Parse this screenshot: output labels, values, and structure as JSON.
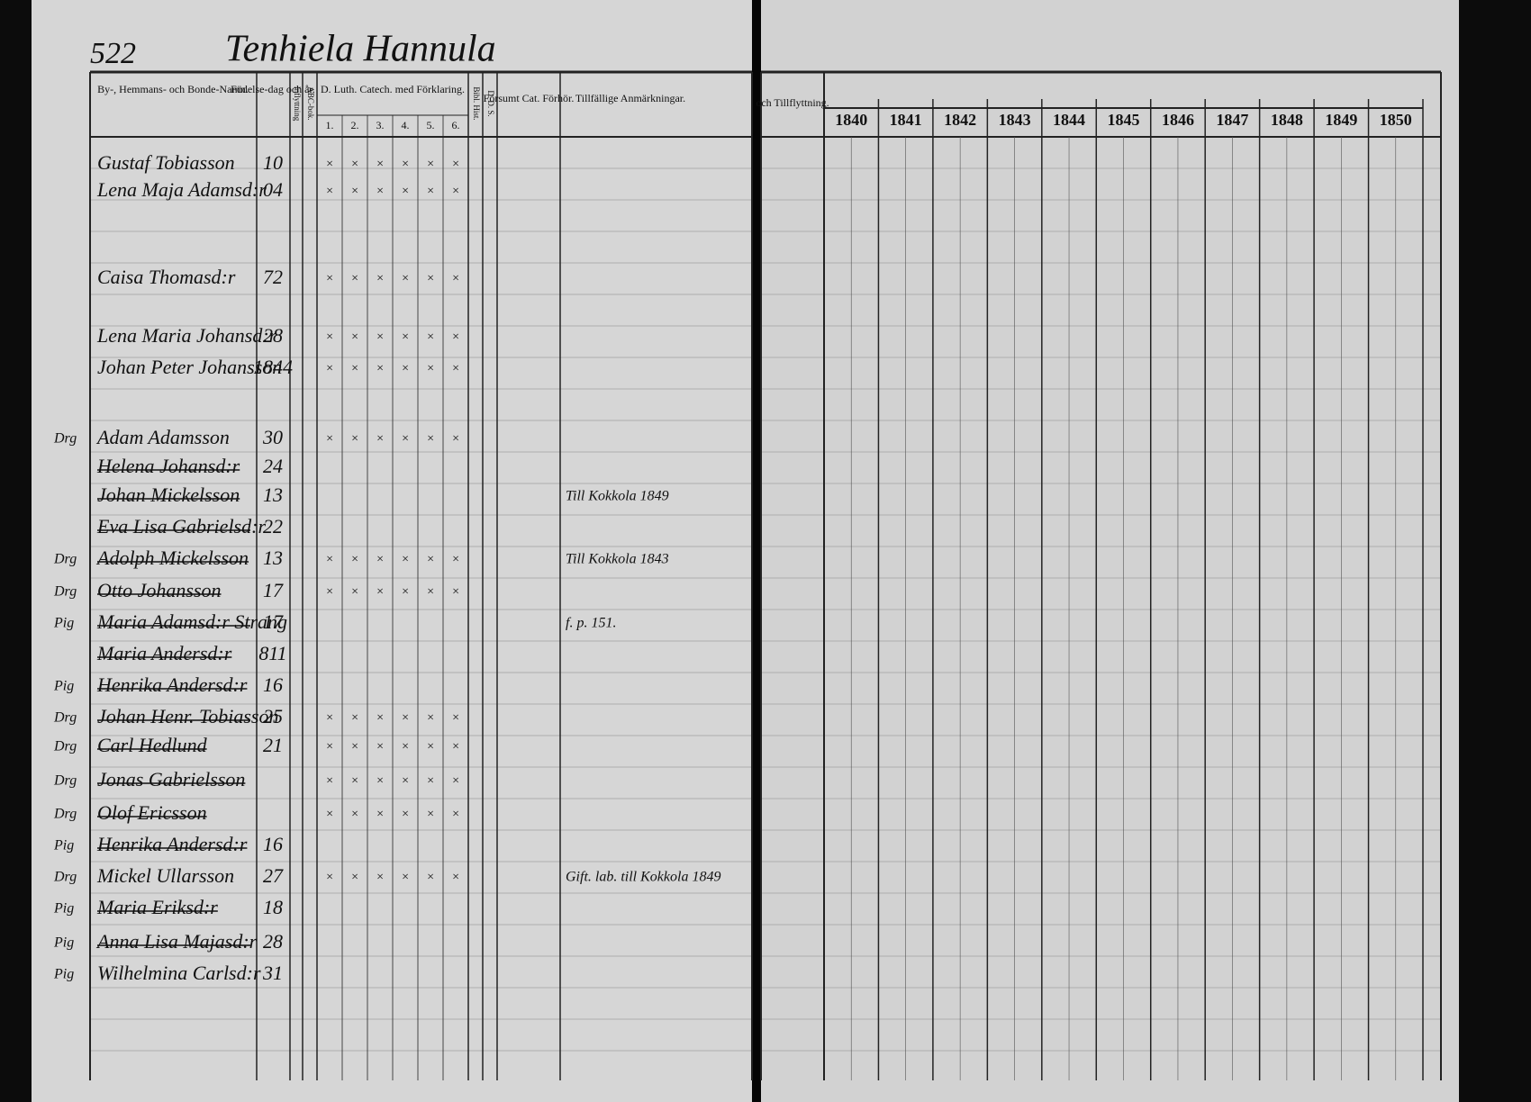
{
  "page_number": "522",
  "title": "Tenhiela Hannula",
  "left_headers": [
    "By-, Hemmans- och Bonde-Namn.",
    "Födelse-dag och år.",
    "Inflyttning",
    "ABC-bok.",
    "D. Luth. Catech. med Förklaring.",
    "Bibl. Hist.",
    "D. D. S.",
    "Försumt Cat. Förhör.",
    "Tillfällige Anmärkningar."
  ],
  "catechism_columns": [
    "1.",
    "2.",
    "3.",
    "4.",
    "5.",
    "6."
  ],
  "right_header": "och Tillflyttning.",
  "years": [
    "1840",
    "1841",
    "1842",
    "1843",
    "1844",
    "1845",
    "1846",
    "1847",
    "1848",
    "1849",
    "1850"
  ],
  "rows": [
    {
      "name": "Gustaf Tobiasson",
      "born": "10"
    },
    {
      "name": "Lena Maja Adamsd:r",
      "born": "04"
    },
    {
      "name": "Caisa Thomasd:r",
      "born": "72"
    },
    {
      "name": "Lena Maria Johansd:r",
      "born": "28"
    },
    {
      "name": "Johan Peter Johansson",
      "born": "1844"
    },
    {
      "status": "Drg",
      "name": "Adam Adamsson",
      "born": "30"
    },
    {
      "name": "Helena Johansd:r",
      "born": "24",
      "struck": true
    },
    {
      "name": "Johan Mickelsson",
      "born": "13",
      "struck": true,
      "note": "Till Kokkola 1849"
    },
    {
      "name": "Eva Lisa Gabrielsd:r",
      "born": "22",
      "struck": true
    },
    {
      "status": "Drg",
      "name": "Adolph Mickelsson",
      "born": "13",
      "struck": true,
      "note": "Till Kokkola 1843"
    },
    {
      "status": "Drg",
      "name": "Otto Johansson",
      "born": "17",
      "struck": true
    },
    {
      "status": "Pig",
      "name": "Maria Adamsd:r Strang",
      "born": "17",
      "struck": true,
      "note": "f. p. 151."
    },
    {
      "name": "Maria Andersd:r",
      "born": "811",
      "struck": true
    },
    {
      "status": "Pig",
      "name": "Henrika Andersd:r",
      "born": "16",
      "struck": true
    },
    {
      "status": "Drg",
      "name": "Johan Henr. Tobiasson",
      "born": "25",
      "struck": true
    },
    {
      "status": "Drg",
      "name": "Carl Hedlund",
      "born": "21",
      "struck": true
    },
    {
      "status": "Drg",
      "name": "Jonas Gabrielsson",
      "struck": true
    },
    {
      "status": "Drg",
      "name": "Olof Ericsson",
      "struck": true
    },
    {
      "status": "Pig",
      "name": "Henrika Andersd:r",
      "born": "16",
      "struck": true
    },
    {
      "status": "Drg",
      "name": "Mickel Ullarsson",
      "born": "27",
      "note": "Gift. lab. till Kokkola 1849"
    },
    {
      "status": "Pig",
      "name": "Maria Eriksd:r",
      "born": "18",
      "struck": true
    },
    {
      "status": "Pig",
      "name": "Anna Lisa Majasd:r",
      "born": "28",
      "struck": true
    },
    {
      "status": "Pig",
      "name": "Wilhelmina Carlsd:r",
      "born": "31"
    }
  ]
}
